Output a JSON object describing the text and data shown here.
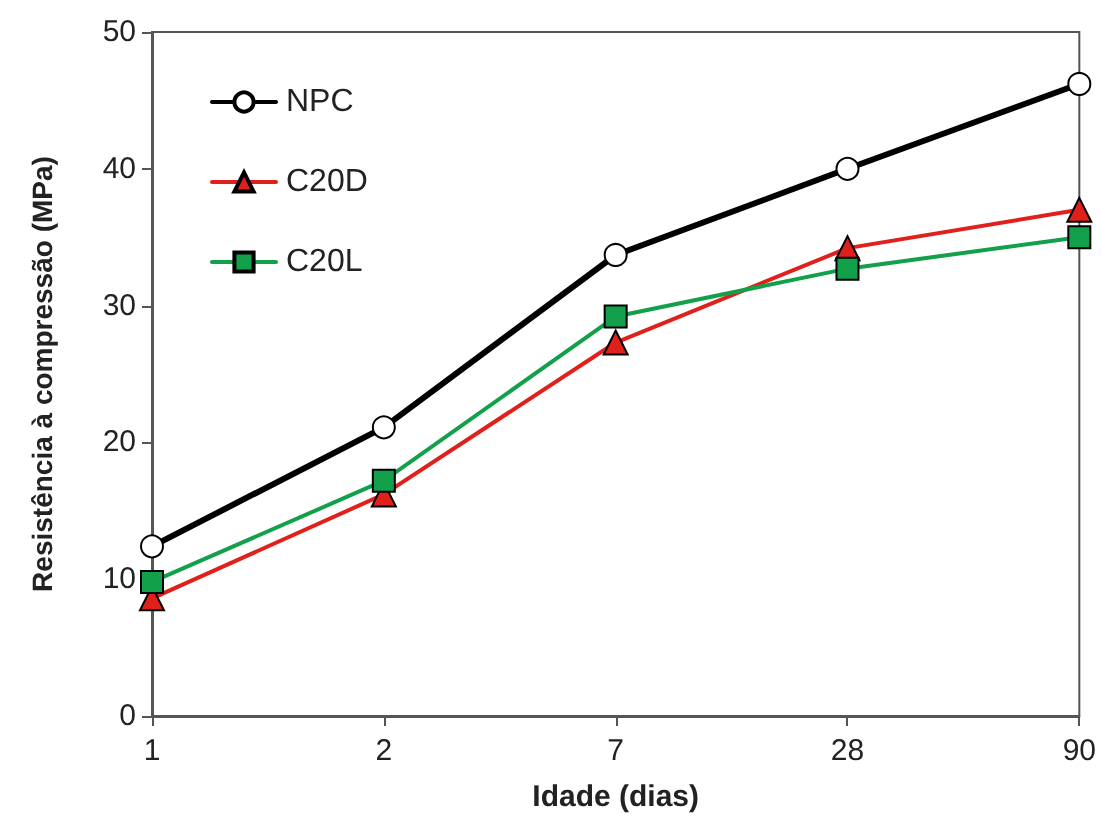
{
  "chart_data": {
    "type": "line",
    "xlabel": "Idade (dias)",
    "ylabel": "Resistência à compressão (MPa)",
    "categories": [
      "1",
      "2",
      "7",
      "28",
      "90"
    ],
    "series": [
      {
        "name": "NPC",
        "color": "#000000",
        "marker": "circle",
        "values": [
          12.4,
          21.1,
          33.7,
          40.0,
          46.2
        ]
      },
      {
        "name": "C20D",
        "color": "#e0201b",
        "marker": "triangle",
        "values": [
          8.6,
          16.2,
          27.3,
          34.2,
          37.0
        ]
      },
      {
        "name": "C20L",
        "color": "#12a04a",
        "marker": "square",
        "values": [
          9.8,
          17.2,
          29.2,
          32.7,
          35.0
        ]
      }
    ],
    "ylim": [
      0,
      50
    ],
    "yticks": [
      0,
      10,
      20,
      30,
      40,
      50
    ],
    "grid": false,
    "legend": "top left",
    "line_style": "solid"
  }
}
